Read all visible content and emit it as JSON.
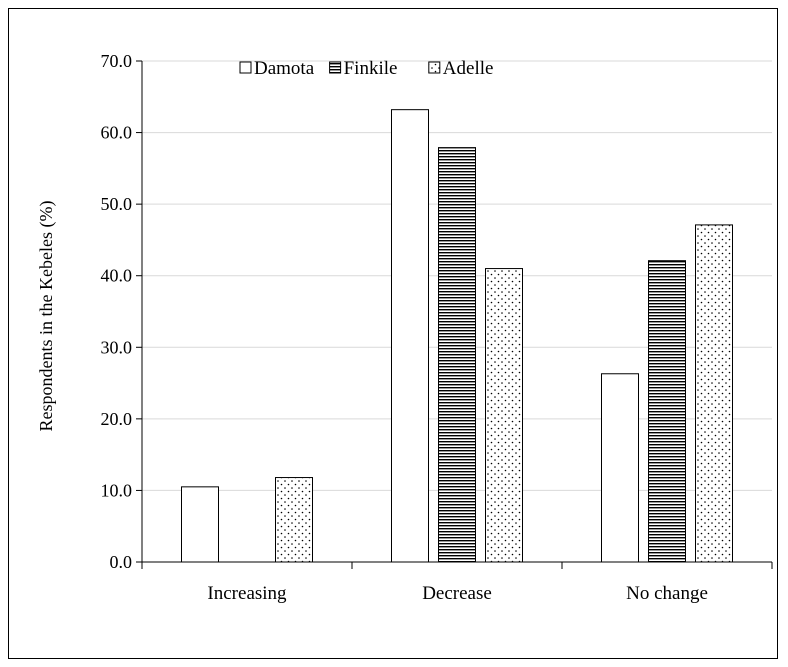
{
  "chart_data": {
    "type": "bar",
    "title": "",
    "xlabel": "",
    "ylabel": "Respondents in the Kebeles (%)",
    "ylim": [
      0,
      70
    ],
    "yticks": [
      "0.0",
      "10.0",
      "20.0",
      "30.0",
      "40.0",
      "50.0",
      "60.0",
      "70.0"
    ],
    "categories": [
      "Increasing",
      "Decrease",
      "No change"
    ],
    "series": [
      {
        "name": "Damota",
        "pattern": "none",
        "values": [
          10.5,
          63.2,
          26.3
        ]
      },
      {
        "name": "Finkile",
        "pattern": "horizontal-lines",
        "values": [
          0,
          57.9,
          42.1
        ]
      },
      {
        "name": "Adelle",
        "pattern": "dots",
        "values": [
          11.8,
          41.0,
          47.1
        ]
      }
    ],
    "grid": true,
    "legend_position": "top-center"
  }
}
